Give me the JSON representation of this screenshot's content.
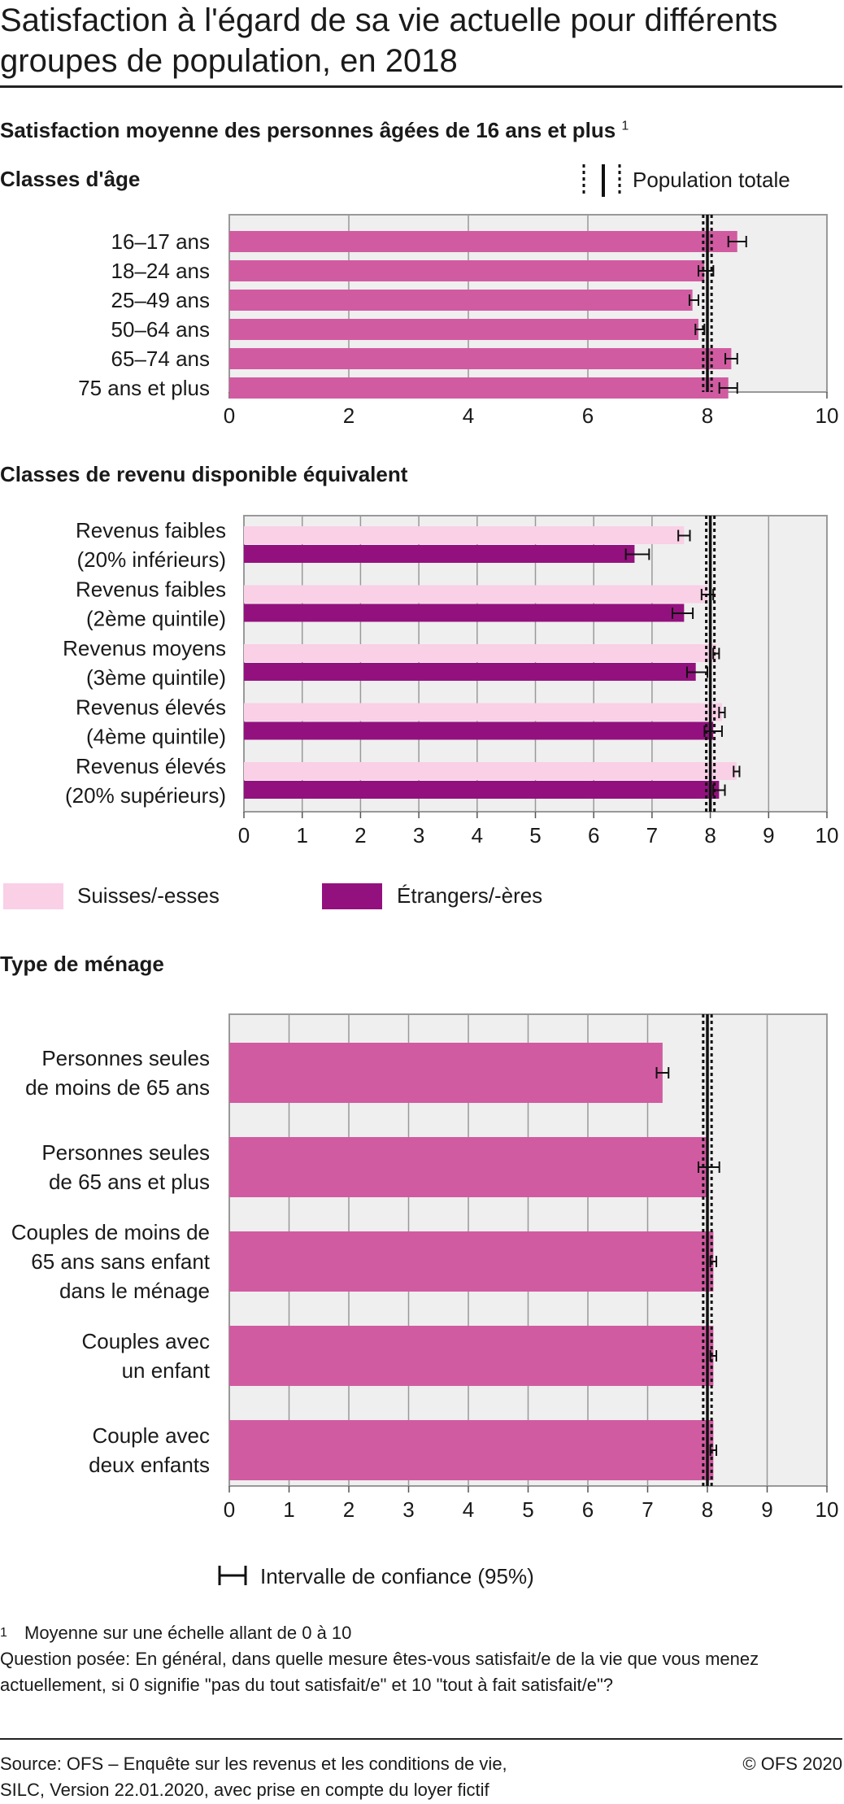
{
  "title": "Satisfaction à l'égard de sa vie actuelle pour différents groupes de population, en 2018",
  "subtitle": "Satisfaction moyenne des personnes âgées de 16 ans et plus",
  "subtitle_note_marker": "1",
  "population_totale_label": "Population totale",
  "ci_legend_label": "Intervalle de confiance (95%)",
  "colors": {
    "magenta": "#d15ba1",
    "pink": "#f9d0e6",
    "purple": "#93117e",
    "plot_bg": "#efefef",
    "grid": "#999999"
  },
  "sections": [
    {
      "heading": "Classes d'âge"
    },
    {
      "heading": "Classes de revenu disponible équivalent"
    },
    {
      "heading": "Type de ménage"
    }
  ],
  "chart_data": [
    {
      "type": "bar",
      "orientation": "horizontal",
      "title": "Classes d'âge",
      "categories": [
        "16–17 ans",
        "18–24 ans",
        "25–49 ans",
        "50–64 ans",
        "65–74 ans",
        "75 ans et plus"
      ],
      "series": [
        {
          "values": [
            8.5,
            7.95,
            7.75,
            7.85,
            8.4,
            8.35
          ],
          "ci": [
            [
              8.35,
              8.65
            ],
            [
              7.85,
              8.1
            ],
            [
              7.7,
              7.85
            ],
            [
              7.8,
              7.95
            ],
            [
              8.3,
              8.5
            ],
            [
              8.2,
              8.5
            ]
          ]
        }
      ],
      "reference": {
        "value": 8.0,
        "ci": [
          7.93,
          8.07
        ]
      },
      "xlim": [
        0,
        10
      ],
      "xticks": [
        "0",
        "2",
        "4",
        "6",
        "8",
        "10"
      ],
      "grid": true
    },
    {
      "type": "bar",
      "orientation": "horizontal",
      "title": "Classes de revenu disponible équivalent",
      "categories": [
        [
          "Revenus faibles",
          "(20% inférieurs)"
        ],
        [
          "Revenus faibles",
          "(2ème quintile)"
        ],
        [
          "Revenus moyens",
          "(3ème quintile)"
        ],
        [
          "Revenus élevés",
          "(4ème quintile)"
        ],
        [
          "Revenus élevés",
          "(20% supérieurs)"
        ]
      ],
      "series": [
        {
          "name": "Suisses/-esses",
          "values": [
            7.55,
            7.95,
            8.1,
            8.2,
            8.45
          ],
          "ci": [
            [
              7.45,
              7.65
            ],
            [
              7.85,
              8.05
            ],
            [
              8.05,
              8.15
            ],
            [
              8.15,
              8.25
            ],
            [
              8.4,
              8.5
            ]
          ]
        },
        {
          "name": "Étrangers/-ères",
          "values": [
            6.7,
            7.55,
            7.75,
            8.05,
            8.15
          ],
          "ci": [
            [
              6.55,
              6.95
            ],
            [
              7.35,
              7.7
            ],
            [
              7.6,
              7.95
            ],
            [
              7.9,
              8.2
            ],
            [
              8.05,
              8.25
            ]
          ]
        }
      ],
      "reference": {
        "value": 8.0,
        "ci": [
          7.93,
          8.07
        ]
      },
      "xlim": [
        0,
        10
      ],
      "xticks": [
        "0",
        "1",
        "2",
        "3",
        "4",
        "5",
        "6",
        "7",
        "8",
        "9",
        "10"
      ],
      "grid": true,
      "legend": [
        "Suisses/-esses",
        "Étrangers/-ères"
      ]
    },
    {
      "type": "bar",
      "orientation": "horizontal",
      "title": "Type de ménage",
      "categories": [
        [
          "Personnes seules",
          "de moins de 65 ans"
        ],
        [
          "Personnes seules",
          "de 65 ans et plus"
        ],
        [
          "Couples de moins de",
          "65 ans sans enfant",
          "dans le ménage"
        ],
        [
          "Couples avec",
          "un enfant"
        ],
        [
          "Couple avec",
          "deux enfants"
        ]
      ],
      "series": [
        {
          "values": [
            7.25,
            8.0,
            8.1,
            8.1,
            8.1
          ],
          "ci": [
            [
              7.15,
              7.35
            ],
            [
              7.85,
              8.2
            ],
            [
              8.05,
              8.15
            ],
            [
              8.05,
              8.15
            ],
            [
              8.05,
              8.15
            ]
          ]
        }
      ],
      "reference": {
        "value": 8.0,
        "ci": [
          7.93,
          8.07
        ]
      },
      "xlim": [
        0,
        10
      ],
      "xticks": [
        "0",
        "1",
        "2",
        "3",
        "4",
        "5",
        "6",
        "7",
        "8",
        "9",
        "10"
      ],
      "grid": true
    }
  ],
  "note": {
    "marker": "1",
    "line1": "Moyenne sur une échelle allant de 0 à 10",
    "line2": "Question posée: En général, dans quelle mesure êtes-vous satisfait/e de la vie que vous menez actuellement, si 0 signifie \"pas du tout satisfait/e\" et 10 \"tout à fait satisfait/e\"?"
  },
  "footer": {
    "source_line1": "Source: OFS – Enquête sur les revenus et les conditions de vie,",
    "source_line2": "SILC, Version 22.01.2020, avec prise en compte du loyer fictif",
    "copyright": "© OFS 2020"
  }
}
